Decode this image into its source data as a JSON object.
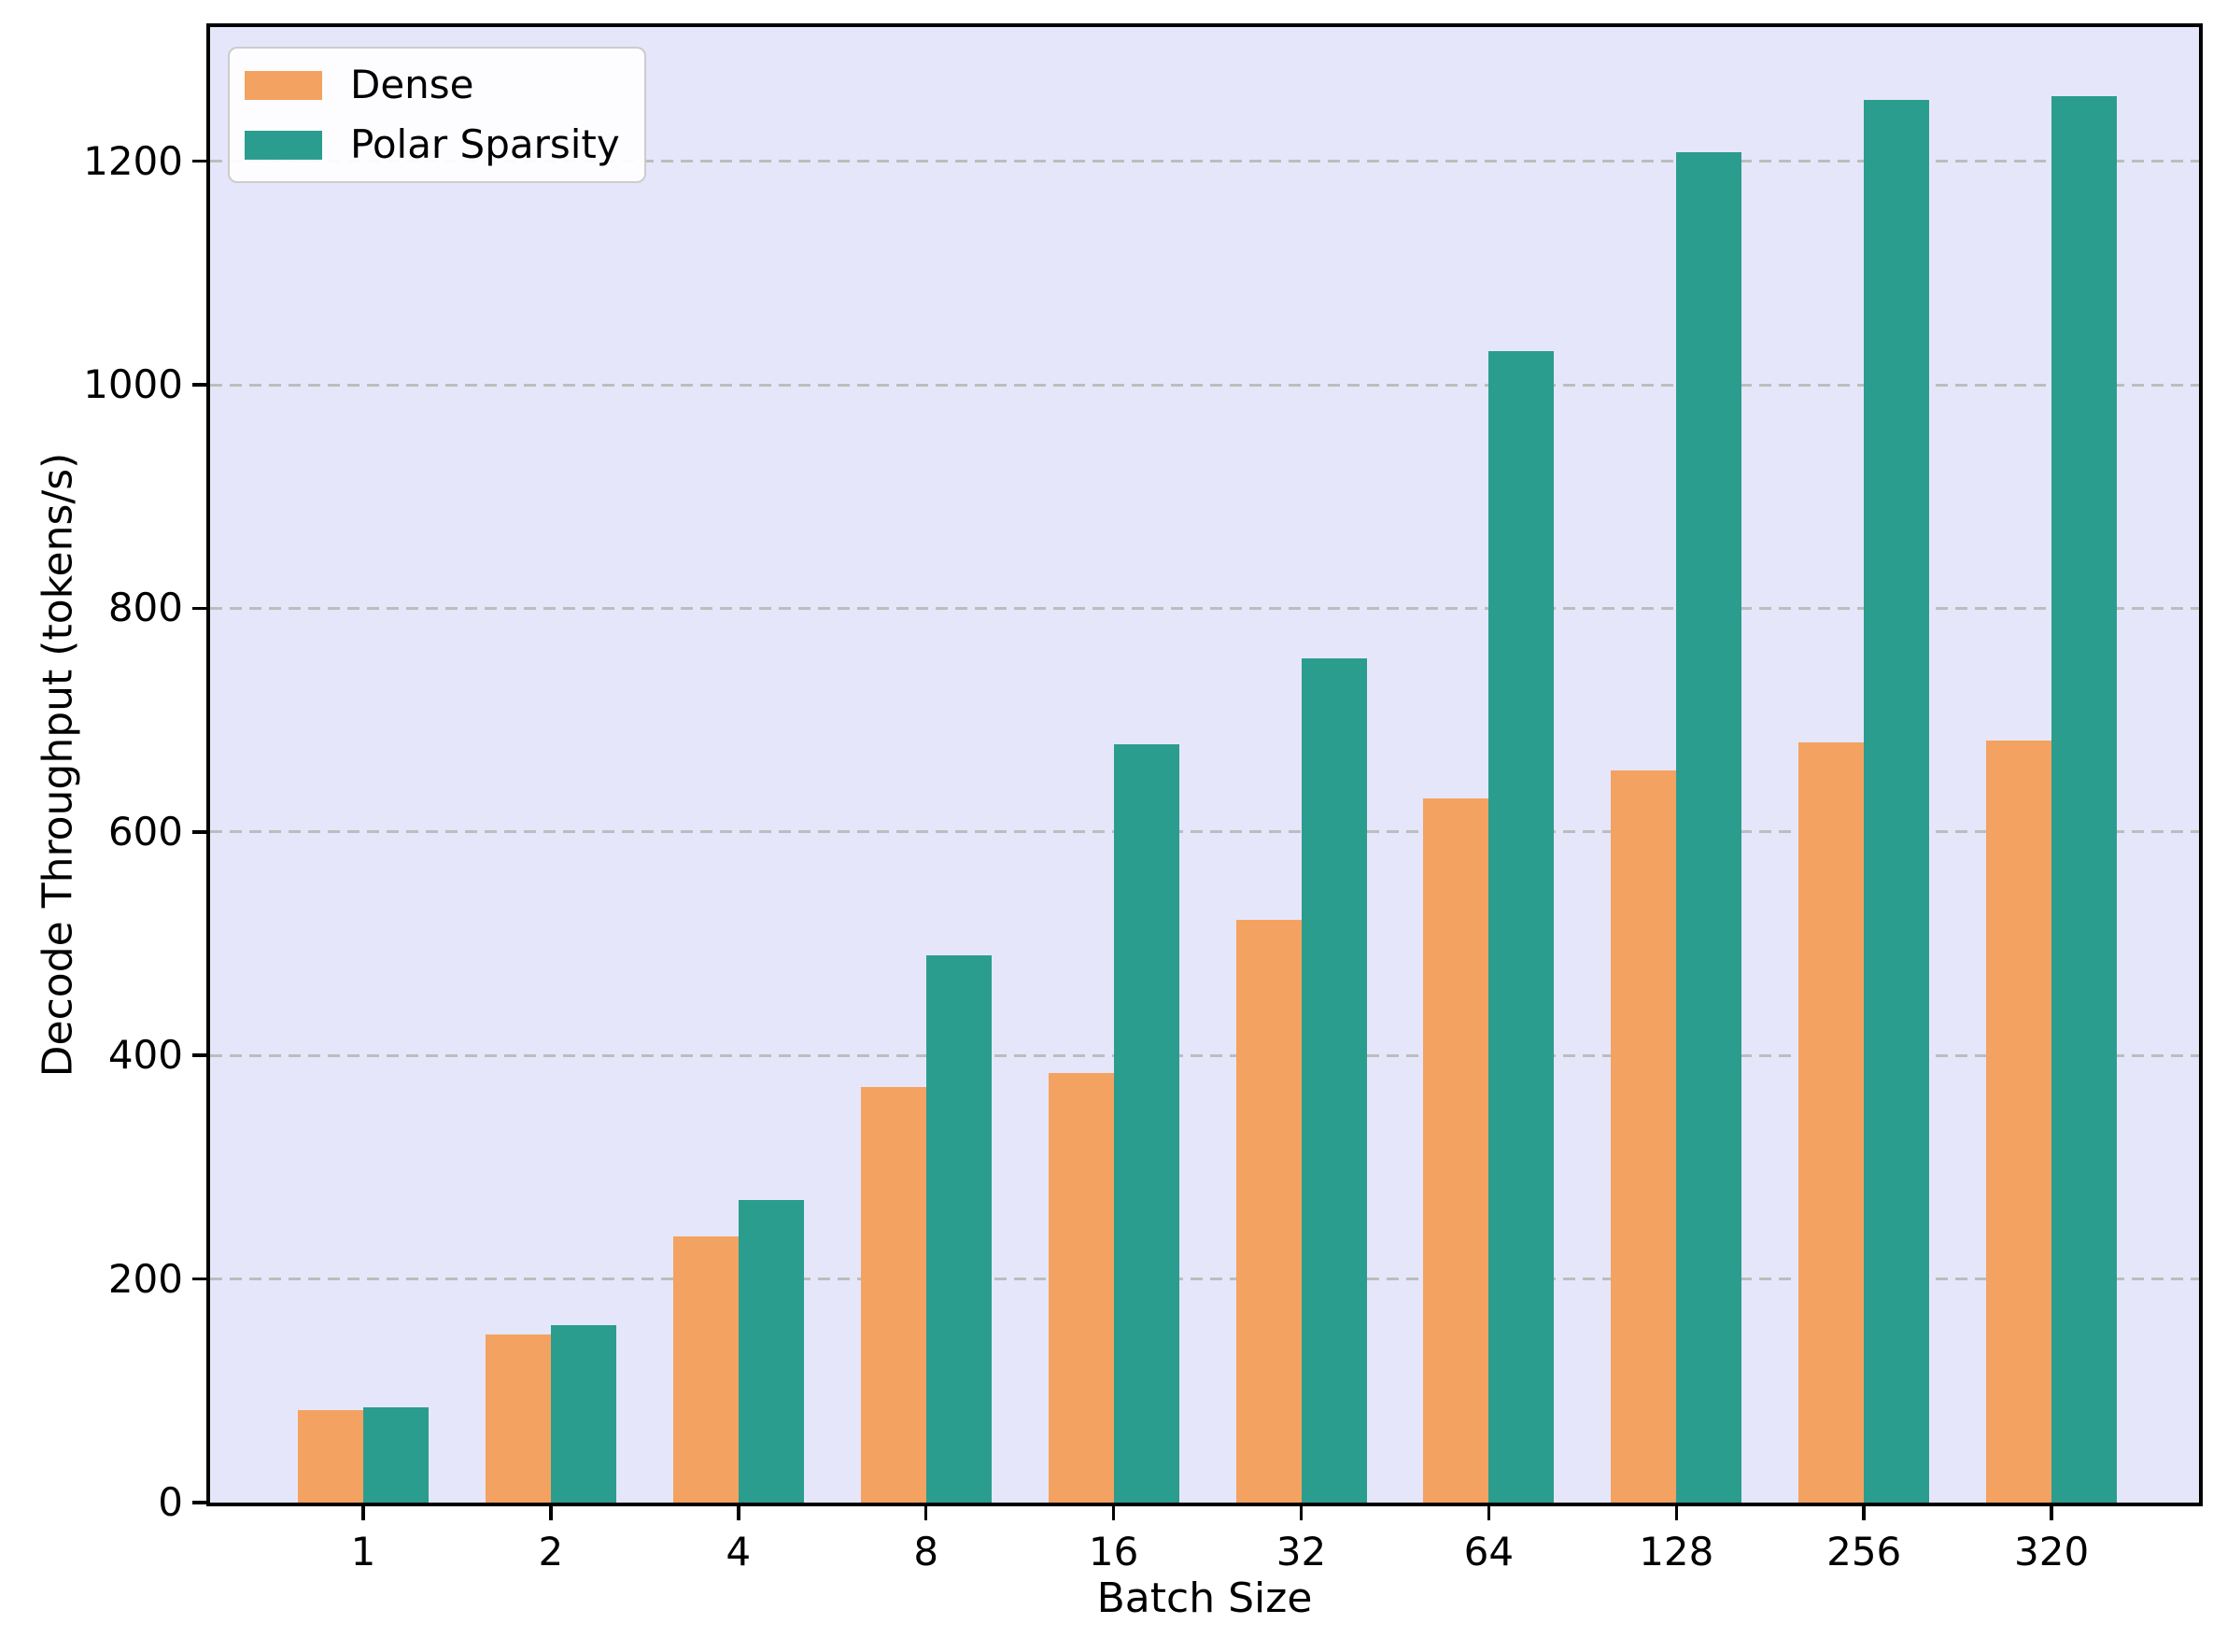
{
  "chart_data": {
    "type": "bar",
    "title": "",
    "xlabel": "Batch Size",
    "ylabel": "Decode Throughput (tokens/s)",
    "categories": [
      "1",
      "2",
      "4",
      "8",
      "16",
      "32",
      "64",
      "128",
      "256",
      "320"
    ],
    "series": [
      {
        "name": "Dense",
        "color": "#F4A261",
        "values": [
          83,
          150,
          238,
          372,
          384,
          521,
          630,
          655,
          680,
          682
        ]
      },
      {
        "name": "Polar Sparsity",
        "color": "#2A9D8F",
        "values": [
          85,
          159,
          271,
          490,
          678,
          755,
          1030,
          1208,
          1255,
          1258
        ]
      }
    ],
    "ylim": [
      0,
      1320
    ],
    "yticks": [
      0,
      200,
      400,
      600,
      800,
      1000,
      1200
    ],
    "grid": "horizontal-dashed",
    "legend_position": "upper-left",
    "colors": {
      "plot_background": "#E6E6FA",
      "figure_background": "#FFFFFF",
      "gridline": "#BDBDBD",
      "spine": "#000000",
      "text": "#000000"
    }
  }
}
